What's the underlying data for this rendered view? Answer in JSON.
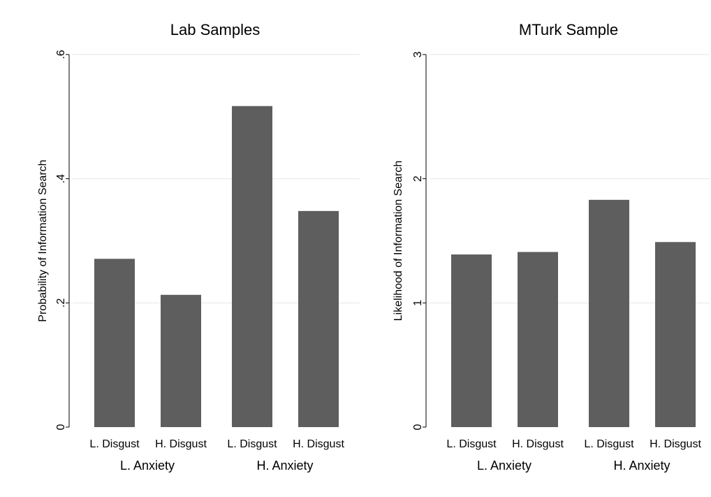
{
  "colors": {
    "bar": "#5e5e5e",
    "grid": "#e6e6e6",
    "background": "#ffffff"
  },
  "chart_data": [
    {
      "type": "bar",
      "title": "Lab Samples",
      "ylabel": "Probability of Information Search",
      "xlabel": "",
      "ylim": [
        0,
        0.6
      ],
      "yticks": [
        0,
        0.2,
        0.4,
        0.6
      ],
      "ytick_labels": [
        "0",
        ".2",
        ".4",
        ".6"
      ],
      "grid": true,
      "categories": [
        "L. Disgust",
        "H. Disgust",
        "L. Disgust",
        "H. Disgust"
      ],
      "groups": [
        {
          "label": "L. Anxiety",
          "categories": [
            0,
            1
          ]
        },
        {
          "label": "H. Anxiety",
          "categories": [
            2,
            3
          ]
        }
      ],
      "values": [
        0.271,
        0.213,
        0.517,
        0.348
      ]
    },
    {
      "type": "bar",
      "title": "MTurk Sample",
      "ylabel": "Likelihood of Information Search",
      "xlabel": "",
      "ylim": [
        0,
        3
      ],
      "yticks": [
        0,
        1,
        2,
        3
      ],
      "ytick_labels": [
        "0",
        "1",
        "2",
        "3"
      ],
      "grid": true,
      "categories": [
        "L. Disgust",
        "H. Disgust",
        "L. Disgust",
        "H. Disgust"
      ],
      "groups": [
        {
          "label": "L. Anxiety",
          "categories": [
            0,
            1
          ]
        },
        {
          "label": "H. Anxiety",
          "categories": [
            2,
            3
          ]
        }
      ],
      "values": [
        1.39,
        1.41,
        1.83,
        1.49
      ]
    }
  ]
}
